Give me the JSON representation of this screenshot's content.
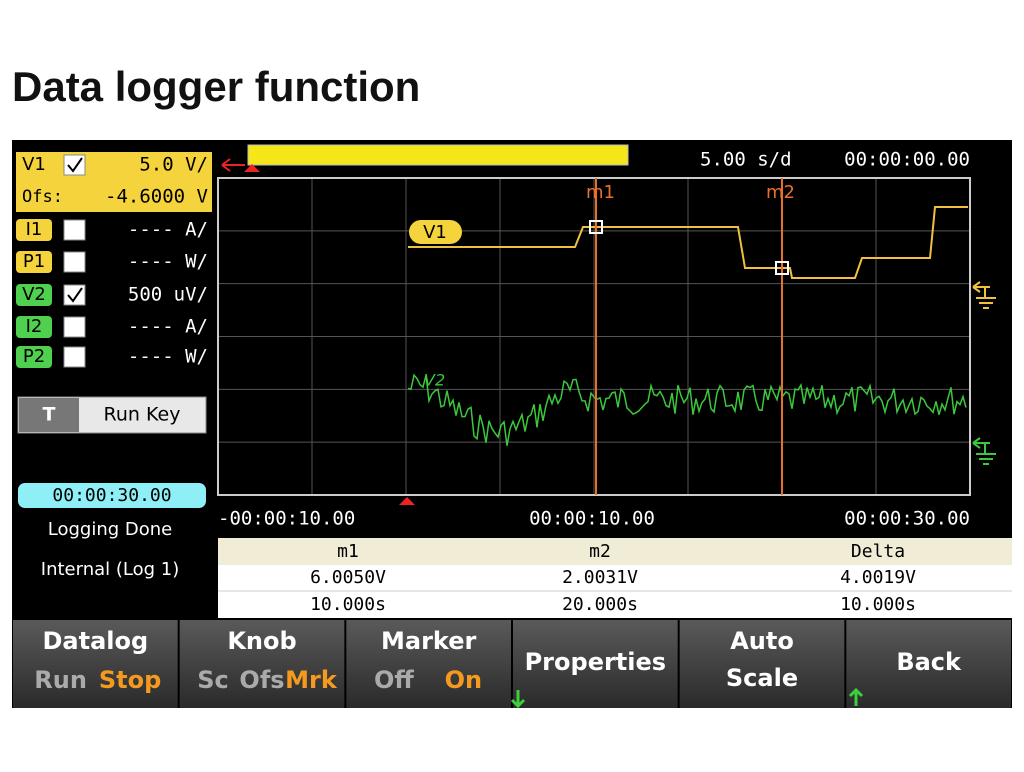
{
  "title": "Data logger function",
  "channels": [
    {
      "label": "V1",
      "scale": "5.0 V/",
      "checked": true,
      "color": "#f5d33c"
    },
    {
      "label": "I1",
      "scale": "---- A/",
      "checked": false,
      "color": "#f5d33c"
    },
    {
      "label": "P1",
      "scale": "---- W/",
      "checked": false,
      "color": "#f5d33c"
    },
    {
      "label": "V2",
      "scale": "500 uV/",
      "checked": true,
      "color": "#4fd04f"
    },
    {
      "label": "I2",
      "scale": "---- A/",
      "checked": false,
      "color": "#4fd04f"
    },
    {
      "label": "P2",
      "scale": "---- W/",
      "checked": false,
      "color": "#4fd04f"
    }
  ],
  "offset": {
    "label": "Ofs:",
    "value": "-4.6000 V"
  },
  "trigger": {
    "label": "T",
    "text": "Run Key"
  },
  "status": {
    "time": "00:00:30.00",
    "state": "Logging Done",
    "target": "Internal (Log 1)"
  },
  "plot": {
    "timebase": "5.00 s/d",
    "start_time": "00:00:00.00",
    "markers": [
      "m1",
      "m2"
    ],
    "trace_labels": [
      "V1",
      "V2"
    ],
    "x_labels": [
      "-00:00:10.00",
      "00:00:10.00",
      "00:00:30.00"
    ]
  },
  "table": {
    "header": [
      "m1",
      "m2",
      "Delta"
    ],
    "rows": [
      [
        "6.0050V",
        "2.0031V",
        "4.0019V"
      ],
      [
        "10.000s",
        "20.000s",
        "10.000s"
      ]
    ]
  },
  "softkeys": [
    {
      "lines": [
        "Datalog"
      ],
      "options": [
        "Run",
        "Stop"
      ],
      "active": 1
    },
    {
      "lines": [
        "Knob"
      ],
      "options": [
        "Sc",
        "Ofs",
        "Mrk"
      ],
      "active": 2
    },
    {
      "lines": [
        "Marker"
      ],
      "options": [
        "Off",
        "On"
      ],
      "active": 1
    },
    {
      "lines": [
        "Properties"
      ]
    },
    {
      "lines": [
        "Auto",
        "Scale"
      ]
    },
    {
      "lines": [
        "Back"
      ]
    }
  ]
}
